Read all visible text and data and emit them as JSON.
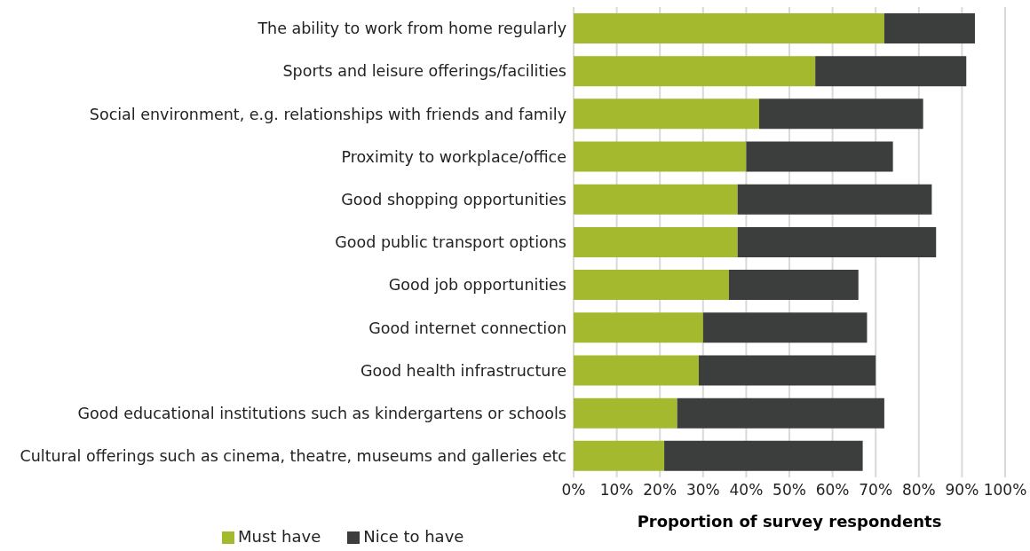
{
  "chart_data": {
    "type": "bar",
    "orientation": "horizontal",
    "stacked": true,
    "categories": [
      "The ability to work from home regularly",
      "Sports and leisure offerings/facilities",
      "Social environment, e.g. relationships with friends and family",
      "Proximity to workplace/office",
      "Good shopping opportunities",
      "Good public transport options",
      "Good job opportunities",
      "Good internet connection",
      "Good health infrastructure",
      "Good educational institutions such as kindergartens or schools",
      "Cultural offerings such as cinema, theatre, museums and galleries etc"
    ],
    "series": [
      {
        "name": "Must have",
        "color": "#a5b92e",
        "values": [
          72,
          56,
          43,
          40,
          38,
          38,
          36,
          30,
          29,
          24,
          21
        ]
      },
      {
        "name": "Nice to have",
        "color": "#3c3e3e",
        "values": [
          21,
          35,
          38,
          34,
          45,
          46,
          30,
          38,
          41,
          48,
          46
        ]
      }
    ],
    "xlabel": "Proportion of survey respondents",
    "xlim": [
      0,
      100
    ],
    "xticks": [
      {
        "value": 0,
        "label": "0%"
      },
      {
        "value": 10,
        "label": "10%"
      },
      {
        "value": 20,
        "label": "20%"
      },
      {
        "value": 30,
        "label": "30%"
      },
      {
        "value": 40,
        "label": "40%"
      },
      {
        "value": 50,
        "label": "50%"
      },
      {
        "value": 60,
        "label": "60%"
      },
      {
        "value": 70,
        "label": "70%"
      },
      {
        "value": 80,
        "label": "80%"
      },
      {
        "value": 90,
        "label": "90%"
      },
      {
        "value": 100,
        "label": "100%"
      }
    ],
    "grid": "x",
    "legend": "bottom left"
  }
}
